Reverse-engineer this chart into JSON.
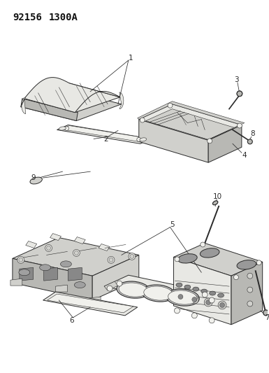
{
  "title1": "92156",
  "title2": "1300A",
  "bg_color": "#f5f5f0",
  "line_color": "#2a2a2a",
  "title_fontsize": 10,
  "label_fontsize": 7.5,
  "lw_main": 0.7,
  "lw_thin": 0.4,
  "lw_leader": 0.55,
  "fill_light": "#e8e8e4",
  "fill_mid": "#d0d0cc",
  "fill_dark": "#b8b8b4",
  "fill_white": "#f0f0ec"
}
